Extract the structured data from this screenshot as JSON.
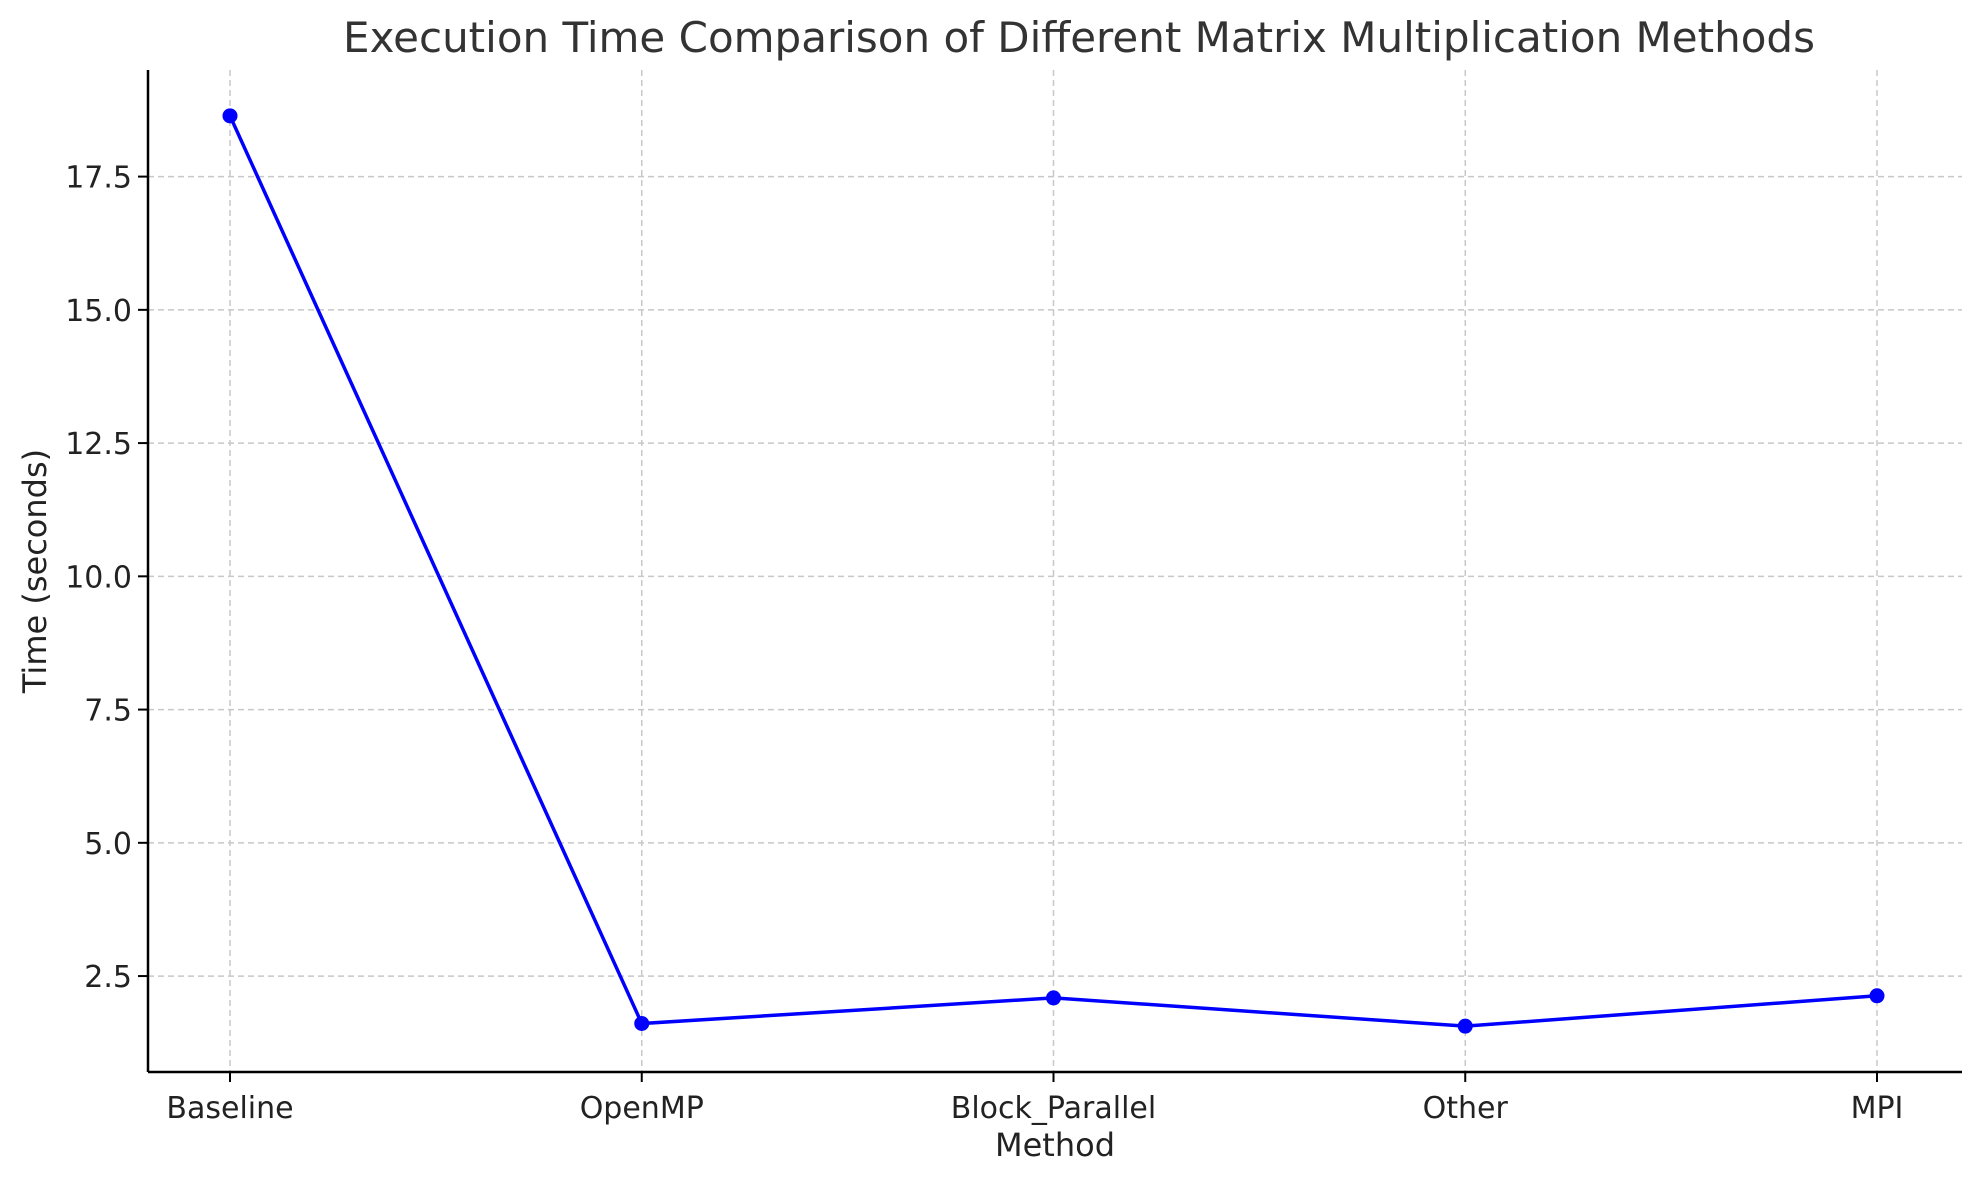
{
  "chart_data": {
    "type": "line",
    "title": "Execution Time Comparison of Different Matrix Multiplication Methods",
    "xlabel": "Method",
    "ylabel": "Time (seconds)",
    "categories": [
      "Baseline",
      "OpenMP",
      "Block_Parallel",
      "Other",
      "MPI"
    ],
    "series": [
      {
        "values": [
          18.64,
          1.61,
          2.09,
          1.56,
          2.13
        ],
        "color": "#0000ff",
        "marker": "circle"
      }
    ],
    "yticks": [
      "2.5",
      "5.0",
      "7.5",
      "10.0",
      "12.5",
      "15.0",
      "17.5"
    ],
    "ylim": [
      0.7,
      19.5
    ],
    "grid": true,
    "grid_style": "dashed",
    "legend": "none"
  }
}
